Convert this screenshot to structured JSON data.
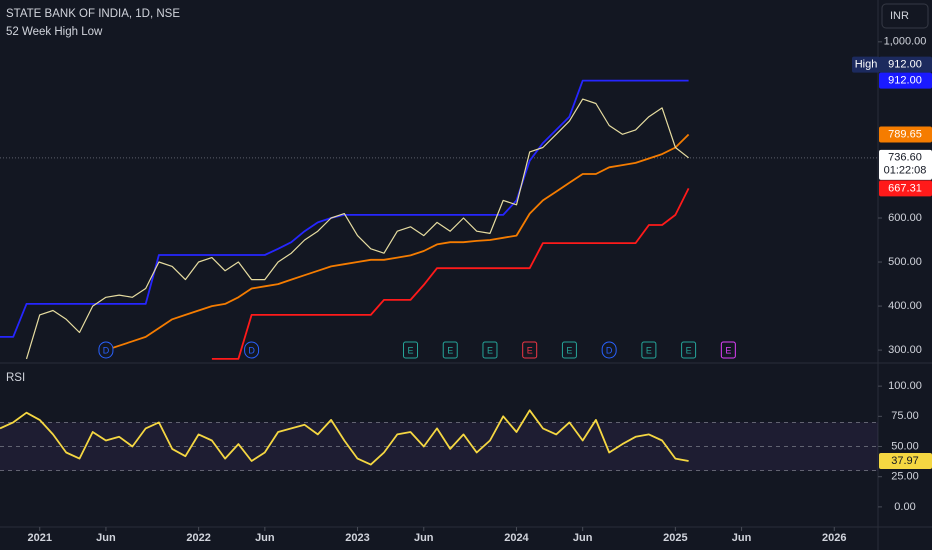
{
  "chart_data": [
    {
      "type": "line",
      "title": "STATE BANK OF INDIA, 1D, NSE",
      "subtitle": "52 Week High Low",
      "currency": "INR",
      "x": [
        "2020-10",
        "2020-11",
        "2020-12",
        "2021-01",
        "2021-02",
        "2021-03",
        "2021-04",
        "2021-05",
        "2021-06",
        "2021-07",
        "2021-08",
        "2021-09",
        "2021-10",
        "2021-11",
        "2021-12",
        "2022-01",
        "2022-02",
        "2022-03",
        "2022-04",
        "2022-05",
        "2022-06",
        "2022-07",
        "2022-08",
        "2022-09",
        "2022-10",
        "2022-11",
        "2022-12",
        "2023-01",
        "2023-02",
        "2023-03",
        "2023-04",
        "2023-05",
        "2023-06",
        "2023-07",
        "2023-08",
        "2023-09",
        "2023-10",
        "2023-11",
        "2023-12",
        "2024-01",
        "2024-02",
        "2024-03",
        "2024-04",
        "2024-05",
        "2024-06",
        "2024-07",
        "2024-08",
        "2024-09",
        "2024-10",
        "2024-11",
        "2024-12",
        "2025-01",
        "2025-02"
      ],
      "series": [
        {
          "color": "#2626ff",
          "values": [
            330,
            330,
            405,
            405,
            405,
            405,
            405,
            405,
            405,
            405,
            405,
            405,
            516,
            516,
            516,
            516,
            516,
            516,
            516,
            516,
            516,
            530,
            545,
            570,
            590,
            600,
            607,
            607,
            607,
            607,
            607,
            607,
            607,
            607,
            607,
            607,
            607,
            607,
            607,
            640,
            730,
            770,
            800,
            830,
            912,
            912,
            912,
            912,
            912,
            912,
            912,
            912,
            912
          ]
        },
        {
          "color": "#ff1a1a",
          "values": [
            null,
            null,
            null,
            null,
            null,
            null,
            null,
            null,
            null,
            null,
            null,
            null,
            null,
            null,
            null,
            null,
            280,
            280,
            280,
            380,
            380,
            380,
            380,
            380,
            380,
            380,
            380,
            380,
            380,
            414,
            414,
            414,
            448,
            486,
            486,
            486,
            486,
            486,
            486,
            486,
            486,
            543,
            543,
            543,
            543,
            543,
            543,
            543,
            543,
            584,
            584,
            607,
            667.31
          ]
        },
        {
          "color": "#f57c00",
          "values": [
            null,
            null,
            null,
            null,
            null,
            null,
            null,
            null,
            300,
            310,
            320,
            330,
            350,
            370,
            380,
            390,
            400,
            405,
            420,
            440,
            445,
            450,
            460,
            470,
            480,
            490,
            495,
            500,
            505,
            505,
            510,
            515,
            525,
            540,
            545,
            545,
            548,
            550,
            555,
            560,
            610,
            640,
            660,
            680,
            700,
            700,
            715,
            720,
            725,
            735,
            745,
            760,
            789.65
          ]
        },
        {
          "color": "#e6dca0",
          "values": [
            null,
            null,
            280,
            380,
            390,
            370,
            340,
            400,
            420,
            425,
            420,
            440,
            500,
            490,
            460,
            500,
            510,
            480,
            500,
            460,
            460,
            500,
            520,
            550,
            570,
            600,
            610,
            560,
            530,
            520,
            570,
            580,
            560,
            590,
            570,
            600,
            570,
            565,
            640,
            630,
            750,
            760,
            790,
            820,
            870,
            860,
            810,
            790,
            800,
            830,
            850,
            760,
            736.6
          ]
        }
      ],
      "xlim": [
        "2020-10",
        "2026-04"
      ],
      "xticks": [
        {
          "value": "2021-01",
          "label": "2021"
        },
        {
          "value": "2021-06",
          "label": "Jun"
        },
        {
          "value": "2022-01",
          "label": "2022"
        },
        {
          "value": "2022-06",
          "label": "Jun"
        },
        {
          "value": "2023-01",
          "label": "2023"
        },
        {
          "value": "2023-06",
          "label": "Jun"
        },
        {
          "value": "2024-01",
          "label": "2024"
        },
        {
          "value": "2024-06",
          "label": "Jun"
        },
        {
          "value": "2025-01",
          "label": "2025"
        },
        {
          "value": "2025-06",
          "label": "Jun"
        },
        {
          "value": "2026-01",
          "label": "2026"
        }
      ],
      "ylim": [
        273,
        1095
      ],
      "yticks": [
        {
          "value": 300,
          "label": "300.00"
        },
        {
          "value": 400,
          "label": "400.00"
        },
        {
          "value": 500,
          "label": "500.00"
        },
        {
          "value": 600,
          "label": "600.00"
        },
        {
          "value": 1000,
          "label": "1,000.00"
        }
      ],
      "last_price": {
        "value": 736.6,
        "label": "736.60",
        "countdown": "01:22:08"
      },
      "price_labels": [
        {
          "value": 912,
          "label": "912.00",
          "tag": "High",
          "color": "#1c2a5e"
        },
        {
          "value": 912,
          "label": "912.00",
          "color": "#1a1aff"
        },
        {
          "value": 789.65,
          "label": "789.65",
          "color": "#f57c00"
        },
        {
          "value": 667.31,
          "label": "667.31",
          "color": "#ff1a1a"
        }
      ],
      "events": [
        {
          "x": "2021-06",
          "label": "D",
          "color": "#2962ff"
        },
        {
          "x": "2022-05",
          "label": "D",
          "color": "#2962ff"
        },
        {
          "x": "2023-05",
          "label": "E",
          "color": "#26a69a"
        },
        {
          "x": "2023-08",
          "label": "E",
          "color": "#26a69a"
        },
        {
          "x": "2023-11",
          "label": "E",
          "color": "#26a69a"
        },
        {
          "x": "2024-02",
          "label": "E",
          "color": "#f23645"
        },
        {
          "x": "2024-05",
          "label": "E",
          "color": "#26a69a"
        },
        {
          "x": "2024-08",
          "label": "D",
          "color": "#2962ff"
        },
        {
          "x": "2024-11",
          "label": "E",
          "color": "#26a69a"
        },
        {
          "x": "2025-02",
          "label": "E",
          "color": "#26a69a"
        },
        {
          "x": "2025-05",
          "label": "E",
          "color": "#e040fb"
        }
      ]
    },
    {
      "type": "line",
      "title": "RSI",
      "series": [
        {
          "color": "#f5d742",
          "values": [
            65,
            70,
            78,
            72,
            60,
            45,
            40,
            62,
            55,
            58,
            50,
            65,
            70,
            48,
            42,
            60,
            55,
            40,
            52,
            38,
            45,
            62,
            65,
            68,
            60,
            72,
            55,
            40,
            35,
            45,
            60,
            62,
            50,
            65,
            48,
            60,
            45,
            55,
            75,
            62,
            80,
            65,
            60,
            70,
            55,
            72,
            45,
            52,
            58,
            60,
            55,
            40,
            37.97
          ]
        }
      ],
      "ylim": [
        -15,
        117.5
      ],
      "yticks": [
        {
          "value": 0,
          "label": "0.00"
        },
        {
          "value": 25,
          "label": "25.00"
        },
        {
          "value": 50,
          "label": "50.00"
        },
        {
          "value": 75,
          "label": "75.00"
        },
        {
          "value": 100,
          "label": "100.00"
        }
      ],
      "levels": [
        70,
        50,
        30
      ],
      "value_label": {
        "value": 37.97,
        "label": "37.97",
        "color": "#f5d742"
      }
    }
  ]
}
